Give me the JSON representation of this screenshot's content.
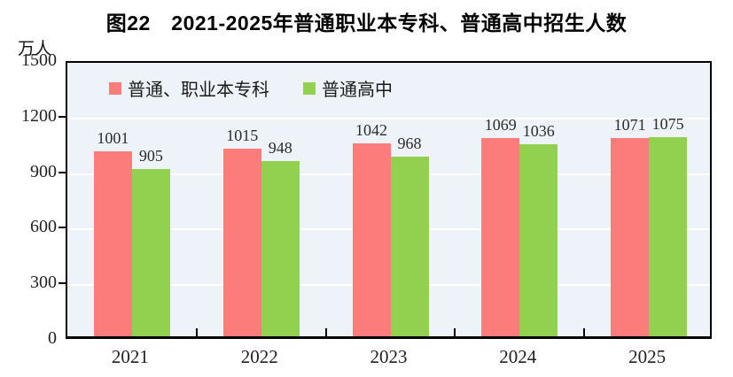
{
  "chart_data": {
    "type": "bar",
    "title": "图22　2021-2025年普通职业本专科、普通高中招生人数",
    "unit": "万人",
    "categories": [
      "2021",
      "2022",
      "2023",
      "2024",
      "2025"
    ],
    "series": [
      {
        "name": "普通、职业本专科",
        "color": "#FC7B7B",
        "values": [
          1001,
          1015,
          1042,
          1069,
          1071
        ]
      },
      {
        "name": "普通高中",
        "color": "#92D050",
        "values": [
          905,
          948,
          968,
          1036,
          1075
        ]
      }
    ],
    "ylim": [
      0,
      1500
    ],
    "yticks": [
      0,
      300,
      600,
      900,
      1200,
      1500
    ],
    "grid": "horizontal white gridlines on light blue plot background",
    "legend_position": "top-left inside plot",
    "colors": {
      "plot_background": "#EDF3F8",
      "frame": "#000000",
      "gridline": "#FFFFFF",
      "text": "#222222"
    }
  }
}
